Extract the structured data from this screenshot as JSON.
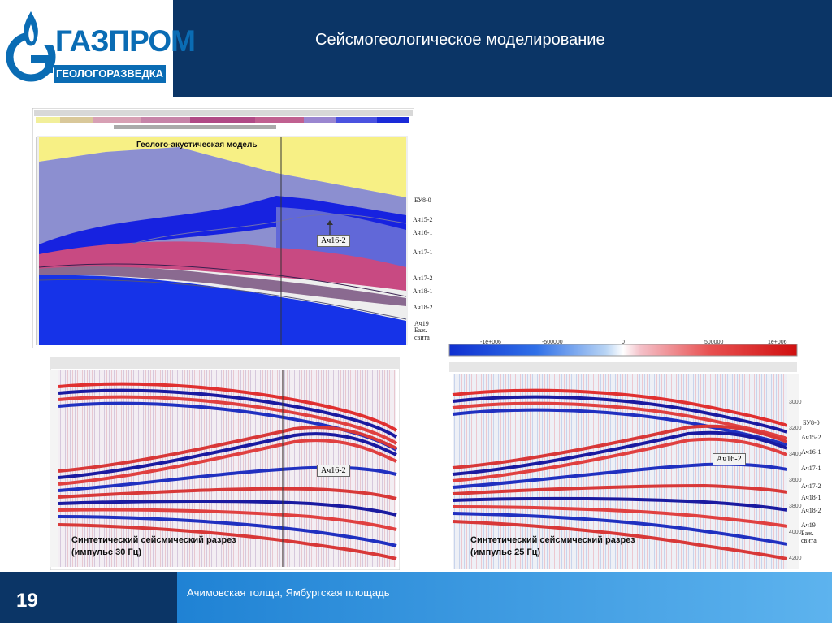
{
  "header": {
    "logo_text": "ГАЗПРОМ",
    "logo_subtitle": "ГЕОЛОГОРАЗВЕДКА",
    "title": "Сейсмогеологическое моделирование"
  },
  "model_panel": {
    "caption": "Геолого-акустическая модель",
    "callout": "Ач16-2",
    "horizons": [
      "БУ8-0",
      "Ач15-2",
      "Ач16-1",
      "Ач17-1",
      "Ач17-2",
      "Ач18-1",
      "Ач18-2",
      "Ач19",
      "Баж.",
      "свита"
    ],
    "colors": {
      "sky": "#f7f085",
      "upper": "#8c8fd0",
      "blue_band": "#1722e0",
      "mid": "#6168d8",
      "pink": "#c84a82",
      "deep": "#1633e8"
    }
  },
  "seismic_left": {
    "caption_line1": "Синтетический сейсмический разрез",
    "caption_line2": "(импульс 30 Гц)",
    "callout": "Ач16-2"
  },
  "seismic_right": {
    "caption_line1": "Синтетический сейсмический разрез",
    "caption_line2": "(импульс 25 Гц)",
    "callout": "Ач16-2",
    "scale_labels": [
      "-1е+006",
      "-500000",
      "0",
      "500000",
      "1е+006"
    ],
    "depth_ticks": [
      "3000",
      "3200",
      "3400",
      "3600",
      "3800",
      "4000",
      "4200"
    ],
    "horizons": [
      "БУ8-0",
      "Ач15-2",
      "Ач16-1",
      "Ач17-1",
      "Ач17-2",
      "Ач18-1",
      "Ач18-2",
      "Ач19",
      "Баж.",
      "свита"
    ]
  },
  "footer": {
    "page_number": "19",
    "text": "Ачимовская толща, Ямбургская площадь"
  }
}
